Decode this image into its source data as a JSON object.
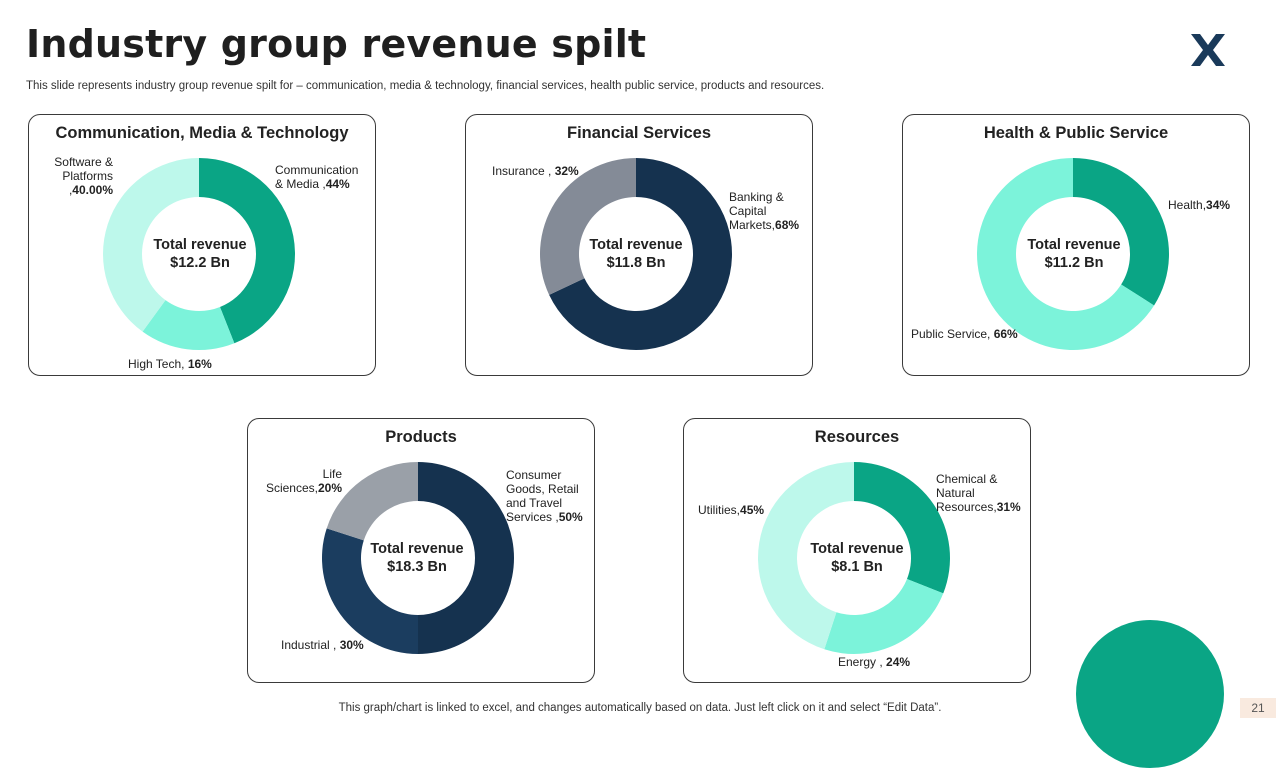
{
  "header": {
    "title": "Industry group revenue spilt",
    "subtitle": "This slide represents industry group revenue spilt for – communication, media & technology, financial services, health  public service, products and resources."
  },
  "chart_data": [
    {
      "type": "pie",
      "title": "Communication, Media & Technology",
      "center_label": "Total revenue",
      "center_value": "$12.2 Bn",
      "categories": [
        "Communication & Media",
        "High Tech",
        "Software & Platforms"
      ],
      "values": [
        44,
        16,
        40
      ],
      "colors": [
        "#0aa585",
        "#7cf3da",
        "#bdf8eb"
      ],
      "labels": [
        {
          "lines": [
            "Communication",
            "& Media ,"
          ],
          "value": "44%"
        },
        {
          "lines": [
            "High Tech, "
          ],
          "value": "16%"
        },
        {
          "lines": [
            "Software &",
            "Platforms",
            ","
          ],
          "value": "40.00%"
        }
      ]
    },
    {
      "type": "pie",
      "title": "Financial Services",
      "center_label": "Total revenue",
      "center_value": "$11.8 Bn",
      "categories": [
        "Banking & Capital Markets",
        "Insurance"
      ],
      "values": [
        68,
        32
      ],
      "colors": [
        "#15324f",
        "#848b97"
      ],
      "labels": [
        {
          "lines": [
            "Banking &",
            "Capital",
            "Markets,"
          ],
          "value": "68%"
        },
        {
          "lines": [
            "Insurance , "
          ],
          "value": "32%"
        }
      ]
    },
    {
      "type": "pie",
      "title": "Health & Public Service",
      "center_label": "Total revenue",
      "center_value": "$11.2 Bn",
      "categories": [
        "Health",
        "Public Service"
      ],
      "values": [
        34,
        66
      ],
      "colors": [
        "#0aa585",
        "#7cf3da"
      ],
      "labels": [
        {
          "lines": [
            "Health,"
          ],
          "value": "34%"
        },
        {
          "lines": [
            "Public Service, "
          ],
          "value": "66%"
        }
      ]
    },
    {
      "type": "pie",
      "title": "Products",
      "center_label": "Total revenue",
      "center_value": "$18.3 Bn",
      "categories": [
        "Consumer Goods, Retail and Travel Services",
        "Industrial",
        "Life Sciences"
      ],
      "values": [
        50,
        30,
        20
      ],
      "colors": [
        "#15324f",
        "#1b3d5f",
        "#9aa0a8"
      ],
      "labels": [
        {
          "lines": [
            "Consumer",
            "Goods, Retail",
            "and Travel",
            "Services ,"
          ],
          "value": "50%"
        },
        {
          "lines": [
            "Industrial , "
          ],
          "value": "30%"
        },
        {
          "lines": [
            "Life",
            "Sciences,"
          ],
          "value": "20%"
        }
      ]
    },
    {
      "type": "pie",
      "title": "Resources",
      "center_label": "Total revenue",
      "center_value": "$8.1 Bn",
      "categories": [
        "Chemical & Natural Resources",
        "Energy",
        "Utilities"
      ],
      "values": [
        31,
        24,
        45
      ],
      "colors": [
        "#0aa585",
        "#7cf3da",
        "#bdf8eb"
      ],
      "labels": [
        {
          "lines": [
            "Chemical &",
            "Natural",
            "Resources,"
          ],
          "value": "31%"
        },
        {
          "lines": [
            "Energy , "
          ],
          "value": "24%"
        },
        {
          "lines": [
            "Utilities,"
          ],
          "value": "45%"
        }
      ]
    }
  ],
  "footer": {
    "note": "This graph/chart is linked to excel,  and changes automatically based on data. Just left click on it and select “Edit Data”.",
    "page_number": "21"
  },
  "colors": {
    "accent": "#0aa585",
    "navy": "#15324f",
    "page_badge_bg": "#f9eadf"
  },
  "icons": {
    "logo": "x-logo-icon"
  }
}
